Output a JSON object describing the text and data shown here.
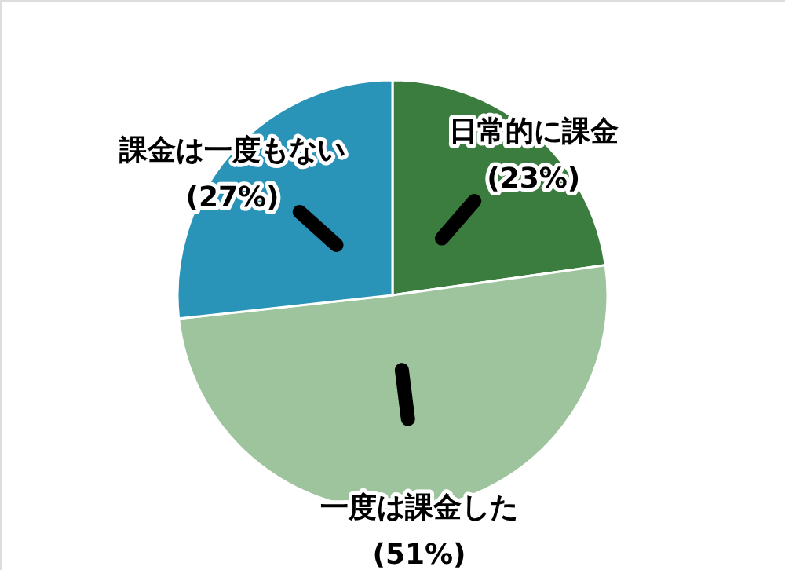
{
  "chart_data": {
    "type": "pie",
    "categories": [
      "日常的に課金",
      "一度は課金した",
      "課金は一度もない"
    ],
    "values": [
      23,
      51,
      27
    ],
    "colors": [
      "#3a7d3e",
      "#9dc49d",
      "#2a93b8"
    ],
    "value_labels": [
      "(23%)",
      "(51%)",
      "(27%)"
    ]
  }
}
